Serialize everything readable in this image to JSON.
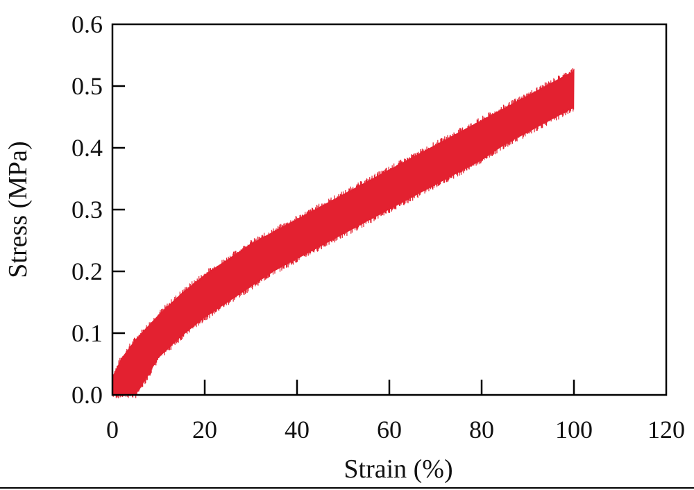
{
  "chart_data": {
    "type": "line",
    "title": "",
    "xlabel": "Strain (%)",
    "ylabel": "Stress (MPa)",
    "xlim": [
      0,
      120
    ],
    "ylim": [
      0.0,
      0.6
    ],
    "xticks": [
      "0",
      "20",
      "40",
      "60",
      "80",
      "100",
      "120"
    ],
    "yticks": [
      "0.0",
      "0.1",
      "0.2",
      "0.3",
      "0.4",
      "0.5",
      "0.6"
    ],
    "grid": false,
    "legend": "none",
    "series": [
      {
        "color": "#e32130",
        "note_style": "dense oscillating band",
        "upper": {
          "x": [
            0,
            2,
            5,
            10,
            15,
            20,
            25,
            30,
            35,
            40,
            45,
            50,
            55,
            60,
            65,
            70,
            75,
            80,
            85,
            90,
            95,
            100
          ],
          "y": [
            0.03,
            0.06,
            0.09,
            0.13,
            0.165,
            0.195,
            0.22,
            0.245,
            0.265,
            0.285,
            0.305,
            0.325,
            0.345,
            0.365,
            0.385,
            0.405,
            0.425,
            0.445,
            0.465,
            0.485,
            0.505,
            0.525
          ]
        },
        "lower": {
          "x": [
            0,
            2,
            5,
            6,
            10,
            15,
            20,
            25,
            30,
            35,
            40,
            45,
            50,
            55,
            60,
            65,
            70,
            75,
            80,
            85,
            90,
            95,
            100
          ],
          "y": [
            0.0,
            0.0,
            0.0,
            0.01,
            0.06,
            0.095,
            0.125,
            0.15,
            0.175,
            0.2,
            0.22,
            0.24,
            0.26,
            0.28,
            0.3,
            0.32,
            0.34,
            0.36,
            0.38,
            0.405,
            0.425,
            0.445,
            0.465
          ]
        }
      }
    ]
  }
}
